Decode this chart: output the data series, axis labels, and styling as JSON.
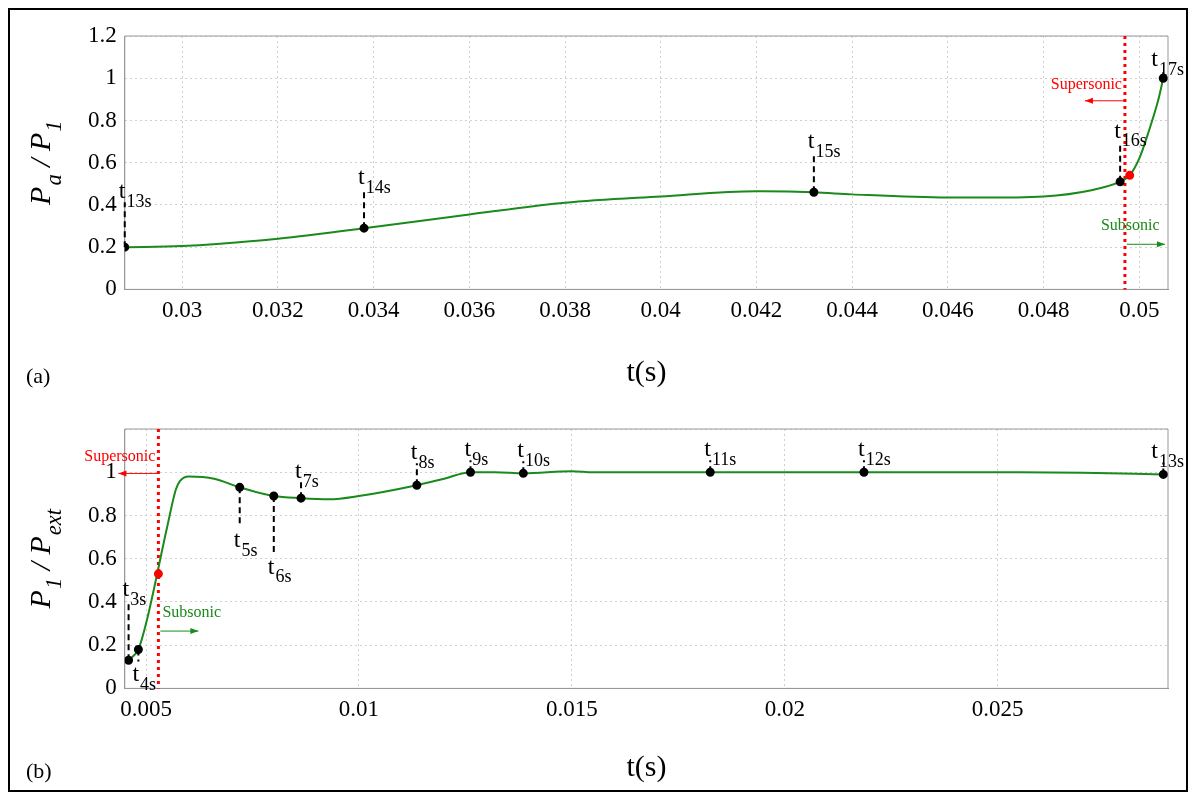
{
  "chart_data": [
    {
      "type": "line",
      "xlabel": "t(s)",
      "ylabel": "P$_{a}$ / P$_{1}$",
      "xlim": [
        0.0288,
        0.0506
      ],
      "ylim": [
        0,
        1.2
      ],
      "xticks": [
        0.03,
        0.032,
        0.034,
        0.036,
        0.038,
        0.04,
        0.042,
        0.044,
        0.046,
        0.048,
        0.05
      ],
      "yticks": [
        0,
        0.2,
        0.4,
        0.6,
        0.8,
        1,
        1.2
      ],
      "grid": true,
      "series": [
        {
          "color": "#1a8a1a",
          "x": [
            0.0288,
            0.03,
            0.032,
            0.034,
            0.036,
            0.038,
            0.04,
            0.042,
            0.0432,
            0.044,
            0.046,
            0.047,
            0.048,
            0.049,
            0.0496,
            0.0498,
            0.05,
            0.0502,
            0.0504,
            0.0505
          ],
          "values": [
            0.2,
            0.205,
            0.24,
            0.295,
            0.355,
            0.41,
            0.44,
            0.465,
            0.46,
            0.45,
            0.435,
            0.435,
            0.44,
            0.47,
            0.51,
            0.54,
            0.62,
            0.75,
            0.9,
            1.0
          ]
        },
        {
          "type": "scatter",
          "marker": "circle",
          "color": "#000000",
          "x": [
            0.0288,
            0.0338,
            0.0432,
            0.0496,
            0.0505
          ],
          "values": [
            0.2,
            0.29,
            0.46,
            0.51,
            1.0
          ]
        },
        {
          "type": "scatter",
          "marker": "circle",
          "color": "#ff0000",
          "x": [
            0.0498
          ],
          "values": [
            0.54
          ]
        }
      ],
      "ref_lines": [
        {
          "axis": "x",
          "value": 0.0497,
          "color": "#ff0000",
          "line_style": "dotted"
        }
      ],
      "annotations": [
        "(a)",
        "Supersonic",
        "Subsonic",
        {
          "text": "t$_{13s}$",
          "x": 0.0288,
          "y": 0.2
        },
        {
          "text": "t$_{14s}$",
          "x": 0.0338,
          "y": 0.29
        },
        {
          "text": "t$_{15s}$",
          "x": 0.0432,
          "y": 0.46
        },
        {
          "text": "t$_{16s}$",
          "x": 0.0496,
          "y": 0.51
        },
        {
          "text": "t$_{17s}$",
          "x": 0.0505,
          "y": 1.0
        }
      ]
    },
    {
      "type": "line",
      "xlabel": "t(s)",
      "ylabel": "P$_{1}$ / P$_{ext}$",
      "xlim": [
        0.0045,
        0.029
      ],
      "ylim": [
        0,
        1.2
      ],
      "xticks": [
        0.005,
        0.01,
        0.015,
        0.02,
        0.025
      ],
      "yticks": [
        0,
        0.2,
        0.4,
        0.6,
        0.8,
        1,
        {
          "value": 1.2,
          "label": null
        }
      ],
      "grid": true,
      "series": [
        {
          "color": "#1a8a1a",
          "x": [
            0.00459,
            0.0047,
            0.00482,
            0.005,
            0.0055,
            0.0057,
            0.0058,
            0.006,
            0.0066,
            0.0072,
            0.008,
            0.00864,
            0.0093,
            0.01,
            0.01136,
            0.012,
            0.01262,
            0.0132,
            0.01386,
            0.015,
            0.0155,
            0.01825,
            0.02186,
            0.0255,
            0.027,
            0.02889
          ],
          "values": [
            0.13,
            0.15,
            0.18,
            0.3,
            0.75,
            0.92,
            0.96,
            0.98,
            0.97,
            0.93,
            0.89,
            0.88,
            0.875,
            0.89,
            0.94,
            0.97,
            1.0,
            1.0,
            0.995,
            1.005,
            1.0,
            1.0,
            1.0,
            1.0,
            0.998,
            0.99
          ]
        },
        {
          "type": "scatter",
          "marker": "circle",
          "color": "#000000",
          "x": [
            0.00459,
            0.00482,
            0.0072,
            0.008,
            0.00864,
            0.01136,
            0.01262,
            0.01386,
            0.01825,
            0.02186,
            0.02889
          ],
          "values": [
            0.13,
            0.18,
            0.93,
            0.89,
            0.88,
            0.94,
            1.0,
            0.995,
            1.0,
            1.0,
            0.99
          ]
        },
        {
          "type": "scatter",
          "marker": "circle",
          "color": "#ff0000",
          "x": [
            0.00529
          ],
          "values": [
            0.53
          ]
        }
      ],
      "ref_lines": [
        {
          "axis": "x",
          "value": 0.00529,
          "color": "#ff0000",
          "line_style": "dotted"
        }
      ],
      "annotations": [
        "(b)",
        "Supersonic",
        "Subsonic",
        {
          "text": "t$_{3s}$",
          "x": 0.00459,
          "y": 0.13
        },
        {
          "text": "t$_{4s}$",
          "x": 0.00482,
          "y": 0.18
        },
        {
          "text": "t$_{5s}$",
          "x": 0.0072,
          "y": 0.93
        },
        {
          "text": "t$_{6s}$",
          "x": 0.008,
          "y": 0.89
        },
        {
          "text": "t$_{7s}$",
          "x": 0.00864,
          "y": 0.88
        },
        {
          "text": "t$_{8s}$",
          "x": 0.01136,
          "y": 0.94
        },
        {
          "text": "t$_{9s}$",
          "x": 0.01262,
          "y": 1.0
        },
        {
          "text": "t$_{10s}$",
          "x": 0.01386,
          "y": 0.995
        },
        {
          "text": "t$_{11s}$",
          "x": 0.01825,
          "y": 1.0
        },
        {
          "text": "t$_{12s}$",
          "x": 0.02186,
          "y": 1.0
        },
        {
          "text": "t$_{13s}$",
          "x": 0.02889,
          "y": 0.99
        }
      ]
    }
  ]
}
